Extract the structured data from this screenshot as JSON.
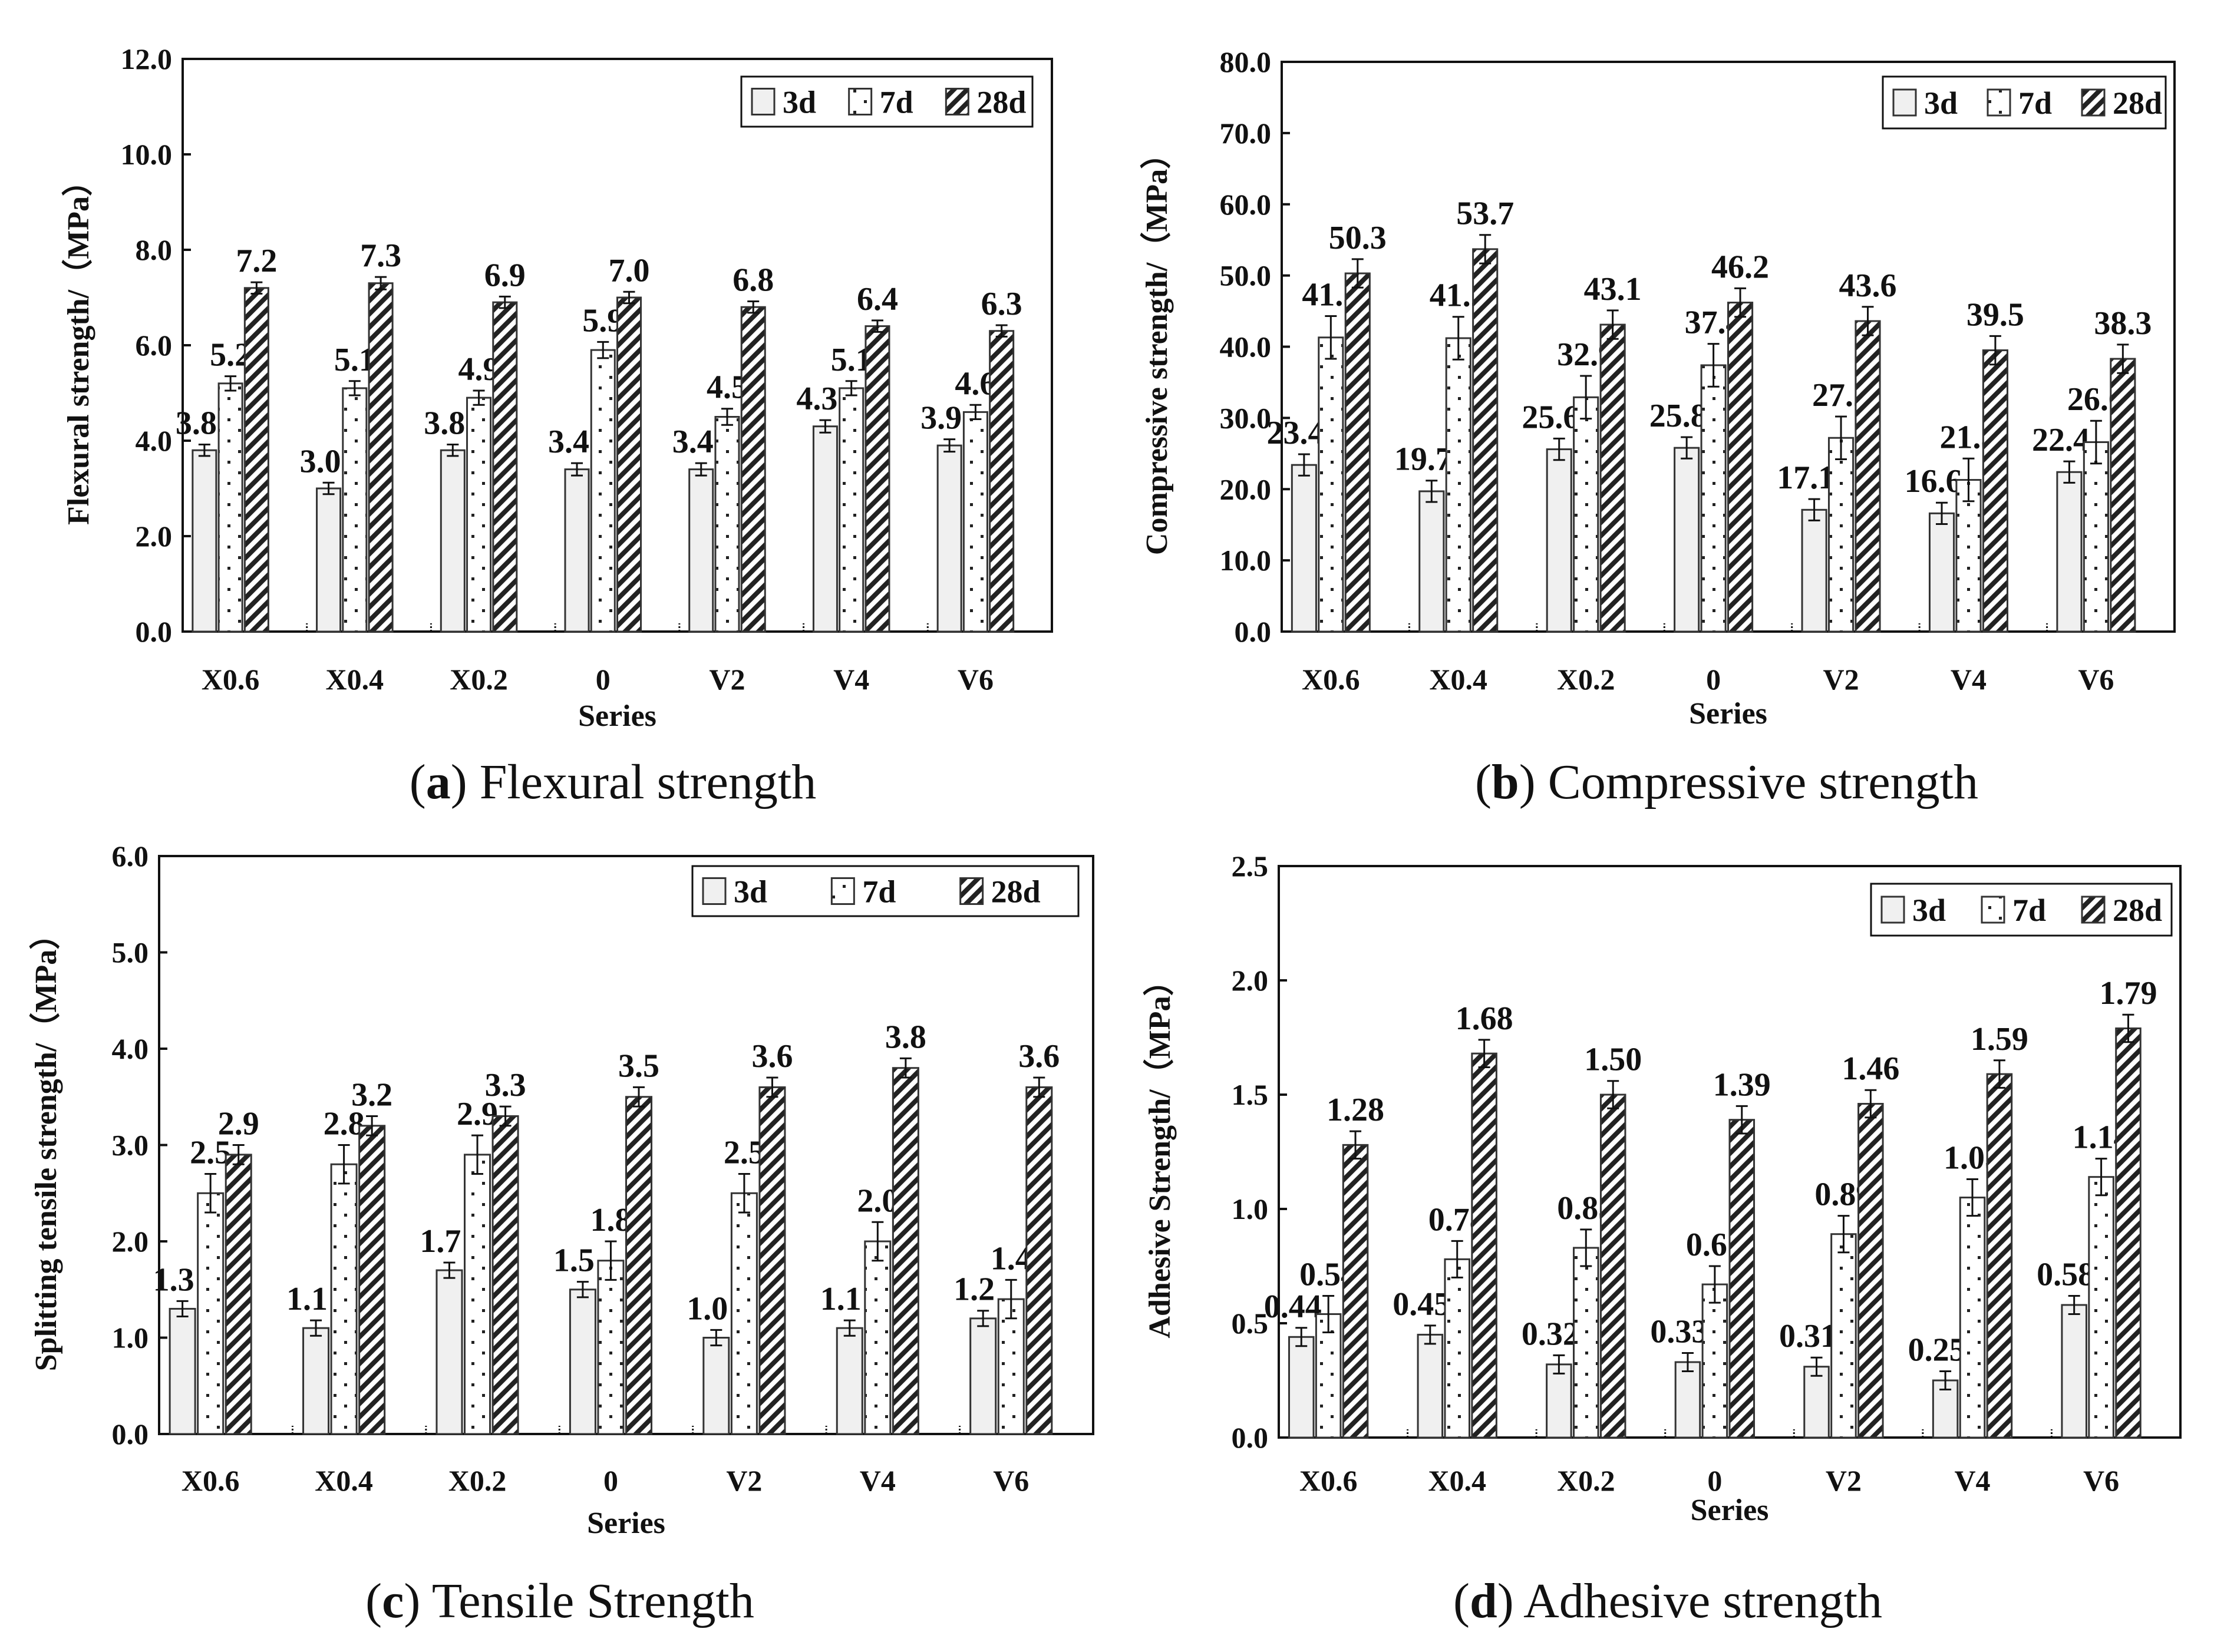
{
  "chart_data": [
    {
      "id": "a",
      "type": "bar",
      "caption_letter": "a",
      "caption_text": "Flexural strength",
      "ylabel": "Flexural strength/（MPa）",
      "xlabel": "Series",
      "ylim": [
        0,
        12
      ],
      "yticks": [
        "0.0",
        "2.0",
        "4.0",
        "6.0",
        "8.0",
        "10.0",
        "12.0"
      ],
      "decimals": 1,
      "legend_position": "top-right",
      "categories": [
        "X0.6",
        "X0.4",
        "X0.2",
        "0",
        "V2",
        "V4",
        "V6"
      ],
      "series": [
        {
          "name": "3d",
          "values": [
            3.8,
            3.0,
            3.8,
            3.4,
            3.4,
            4.3,
            3.9
          ],
          "errors": [
            0.12,
            0.12,
            0.12,
            0.13,
            0.13,
            0.13,
            0.13
          ]
        },
        {
          "name": "7d",
          "values": [
            5.2,
            5.1,
            4.9,
            5.9,
            4.5,
            5.1,
            4.6
          ],
          "errors": [
            0.15,
            0.15,
            0.15,
            0.17,
            0.17,
            0.15,
            0.15
          ]
        },
        {
          "name": "28d",
          "values": [
            7.2,
            7.3,
            6.9,
            7.0,
            6.8,
            6.4,
            6.3
          ],
          "errors": [
            0.12,
            0.13,
            0.12,
            0.12,
            0.12,
            0.12,
            0.12
          ]
        }
      ]
    },
    {
      "id": "b",
      "type": "bar",
      "caption_letter": "b",
      "caption_text": "Compressive strength",
      "ylabel": "Compressive strength/（MPa）",
      "xlabel": "Series",
      "ylim": [
        0,
        80
      ],
      "yticks": [
        "0.0",
        "10.0",
        "20.0",
        "30.0",
        "40.0",
        "50.0",
        "60.0",
        "70.0",
        "80.0"
      ],
      "decimals": 1,
      "legend_position": "top-right",
      "categories": [
        "X0.6",
        "X0.4",
        "X0.2",
        "0",
        "V2",
        "V4",
        "V6"
      ],
      "series": [
        {
          "name": "3d",
          "values": [
            23.4,
            19.7,
            25.6,
            25.8,
            17.1,
            16.6,
            22.4
          ],
          "errors": [
            1.5,
            1.5,
            1.5,
            1.5,
            1.5,
            1.5,
            1.5
          ]
        },
        {
          "name": "7d",
          "values": [
            41.3,
            41.2,
            32.9,
            37.4,
            27.2,
            21.3,
            26.6
          ],
          "errors": [
            3.0,
            3.0,
            3.0,
            3.0,
            3.0,
            3.0,
            3.0
          ]
        },
        {
          "name": "28d",
          "values": [
            50.3,
            53.7,
            43.1,
            46.2,
            43.6,
            39.5,
            38.3
          ],
          "errors": [
            2.0,
            2.0,
            2.0,
            2.0,
            2.0,
            2.0,
            2.0
          ]
        }
      ]
    },
    {
      "id": "c",
      "type": "bar",
      "caption_letter": "c",
      "caption_text": "Tensile Strength",
      "ylabel": "Splitting tensile strength/（MPa）",
      "xlabel": "Series",
      "ylim": [
        0,
        6
      ],
      "yticks": [
        "0.0",
        "1.0",
        "2.0",
        "3.0",
        "4.0",
        "5.0",
        "6.0"
      ],
      "decimals": 1,
      "legend_position": "top-right",
      "categories": [
        "X0.6",
        "X0.4",
        "X0.2",
        "0",
        "V2",
        "V4",
        "V6"
      ],
      "series": [
        {
          "name": "3d",
          "values": [
            1.3,
            1.1,
            1.7,
            1.5,
            1.0,
            1.1,
            1.2
          ],
          "errors": [
            0.08,
            0.08,
            0.08,
            0.08,
            0.08,
            0.08,
            0.08
          ]
        },
        {
          "name": "7d",
          "values": [
            2.5,
            2.8,
            2.9,
            1.8,
            2.5,
            2.0,
            1.4
          ],
          "errors": [
            0.2,
            0.2,
            0.2,
            0.2,
            0.2,
            0.2,
            0.2
          ]
        },
        {
          "name": "28d",
          "values": [
            2.9,
            3.2,
            3.3,
            3.5,
            3.6,
            3.8,
            3.6
          ],
          "errors": [
            0.1,
            0.1,
            0.1,
            0.1,
            0.1,
            0.1,
            0.1
          ]
        }
      ]
    },
    {
      "id": "d",
      "type": "bar",
      "caption_letter": "d",
      "caption_text": "Adhesive strength",
      "ylabel": "Adhesive Strength/（MPa）",
      "xlabel": "Series",
      "ylim": [
        0,
        2.5
      ],
      "yticks": [
        "0.0",
        "0.5",
        "1.0",
        "1.5",
        "2.0",
        "2.5"
      ],
      "decimals": 2,
      "legend_position": "top-right",
      "categories": [
        "X0.6",
        "X0.4",
        "X0.2",
        "0",
        "V2",
        "V4",
        "V6"
      ],
      "series": [
        {
          "name": "3d",
          "values": [
            0.44,
            0.45,
            0.32,
            0.33,
            0.31,
            0.25,
            0.58
          ],
          "errors": [
            0.04,
            0.04,
            0.04,
            0.04,
            0.04,
            0.04,
            0.04
          ]
        },
        {
          "name": "7d",
          "values": [
            0.54,
            0.78,
            0.83,
            0.67,
            0.89,
            1.05,
            1.14
          ],
          "errors": [
            0.08,
            0.08,
            0.08,
            0.08,
            0.08,
            0.08,
            0.08
          ]
        },
        {
          "name": "28d",
          "values": [
            1.28,
            1.68,
            1.5,
            1.39,
            1.46,
            1.59,
            1.79
          ],
          "errors": [
            0.06,
            0.06,
            0.06,
            0.06,
            0.06,
            0.06,
            0.06
          ]
        }
      ]
    }
  ],
  "colors": {
    "bar_3d_fill": "#f0f0f0",
    "bar_outline": "#333333",
    "axis": "#111111"
  }
}
